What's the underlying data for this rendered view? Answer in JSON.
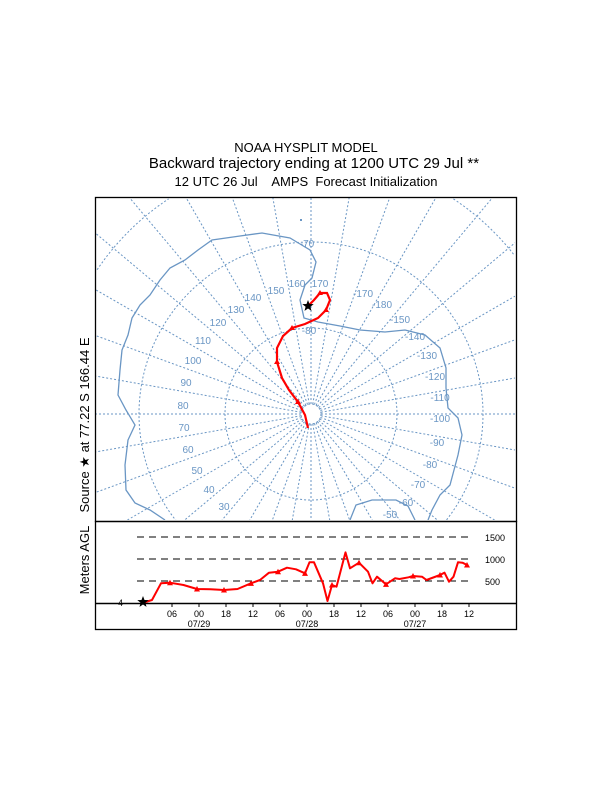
{
  "header": {
    "title": "NOAA HYSPLIT MODEL",
    "subtitle": "Backward trajectory ending at 1200 UTC 29 Jul **",
    "initialization": "12 UTC 26 Jul    AMPS  Forecast Initialization"
  },
  "map": {
    "source_label": "Source ★ at  77.22 S  166.44 E",
    "latitude_label": "-80",
    "latitude_label_outer": "-70",
    "longitude_labels": [
      "160",
      "170",
      "150",
      "140",
      "130",
      "120",
      "110",
      "100",
      "90",
      "80",
      "70",
      "60",
      "50",
      "40",
      "30",
      "-170",
      "-180",
      "-150",
      "-140",
      "-130",
      "-120",
      "-110",
      "-100",
      "-90",
      "-80",
      "-70",
      "-60",
      "-50"
    ],
    "colors": {
      "grid": "#6a96c4",
      "coast": "#6a96c4",
      "trajectory": "#ff0000",
      "source": "#000000"
    },
    "source_icon": "star-icon"
  },
  "chart_data": {
    "type": "line",
    "ylabel": "Meters AGL",
    "yticks": [
      "500",
      "1000",
      "1500"
    ],
    "start_height_label": "4",
    "xtick_labels": [
      "06",
      "00",
      "18",
      "12",
      "06",
      "00",
      "18",
      "12",
      "06",
      "00",
      "18",
      "12"
    ],
    "date_labels": [
      "07/29",
      "07/28",
      "07/27"
    ],
    "series": [
      {
        "color": "#ff0000",
        "points": [
          [
            "07/29 12:00",
            4
          ],
          [
            "07/29 10:00",
            68
          ],
          [
            "07/29 08:00",
            447
          ],
          [
            "07/29 06:00",
            461
          ],
          [
            "07/29 03:00",
            409
          ],
          [
            "07/29 00:00",
            318
          ],
          [
            "07/28 21:00",
            311
          ],
          [
            "07/28 18:00",
            295
          ],
          [
            "07/28 15:00",
            318
          ],
          [
            "07/28 12:00",
            447
          ],
          [
            "07/28 10:00",
            522
          ],
          [
            "07/28 08:00",
            688
          ],
          [
            "07/28 06:00",
            711
          ],
          [
            "07/28 04:00",
            802
          ],
          [
            "07/28 02:00",
            765
          ],
          [
            "07/28 00:00",
            674
          ],
          [
            "07/27 23:00",
            924
          ],
          [
            "07/27 22:00",
            924
          ],
          [
            "07/27 20:00",
            447
          ],
          [
            "07/27 19:00",
            45
          ],
          [
            "07/27 18:00",
            409
          ],
          [
            "07/27 17:00",
            370
          ],
          [
            "07/27 15:00",
            1151
          ],
          [
            "07/27 14:00",
            788
          ],
          [
            "07/27 12:00",
            915
          ],
          [
            "07/27 10:00",
            711
          ],
          [
            "07/27 09:00",
            447
          ],
          [
            "07/27 08:00",
            597
          ],
          [
            "07/27 06:00",
            424
          ],
          [
            "07/27 04:00",
            561
          ],
          [
            "07/27 03:00",
            545
          ],
          [
            "07/27 01:00",
            583
          ],
          [
            "07/27 00:00",
            613
          ],
          [
            "07/26 22:00",
            597
          ],
          [
            "07/26 21:00",
            522
          ],
          [
            "07/26 18:00",
            636
          ],
          [
            "07/26 17:00",
            688
          ],
          [
            "07/26 16:00",
            484
          ],
          [
            "07/26 15:00",
            597
          ],
          [
            "07/26 14:00",
            924
          ],
          [
            "07/26 13:00",
            915
          ],
          [
            "07/26 12:00",
            863
          ]
        ]
      }
    ],
    "ylim": [
      0,
      1700
    ],
    "grid": "dashed horizontal at 500, 1000, 1500"
  }
}
